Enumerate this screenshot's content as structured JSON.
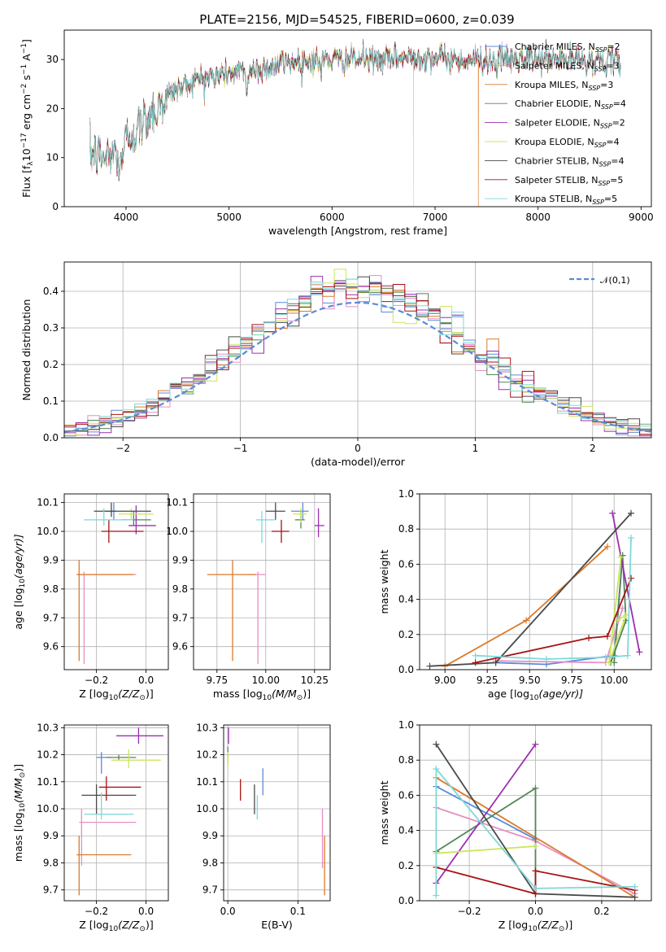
{
  "title": "PLATE=2156, MJD=54525, FIBERID=0600, z=0.039",
  "colors": [
    "#5b8bd9",
    "#e58fc4",
    "#db7a2a",
    "#55855a",
    "#9b2fb0",
    "#cbe65a",
    "#4a4a4a",
    "#a81212",
    "#7fd8d8"
  ],
  "legend_labels": [
    {
      "main": "Chabrier MILES, N",
      "sub": "SSP",
      "tail": "=2"
    },
    {
      "main": "Salpeter MILES, N",
      "sub": "SSP",
      "tail": "=3"
    },
    {
      "main": "Kroupa MILES, N",
      "sub": "SSP",
      "tail": "=3"
    },
    {
      "main": "Chabrier ELODIE, N",
      "sub": "SSP",
      "tail": "=4"
    },
    {
      "main": "Salpeter ELODIE, N",
      "sub": "SSP",
      "tail": "=2"
    },
    {
      "main": "Kroupa ELODIE, N",
      "sub": "SSP",
      "tail": "=4"
    },
    {
      "main": "Chabrier STELIB, N",
      "sub": "SSP",
      "tail": "=4"
    },
    {
      "main": "Salpeter STELIB, N",
      "sub": "SSP",
      "tail": "=5"
    },
    {
      "main": "Kroupa STELIB, N",
      "sub": "SSP",
      "tail": "=5"
    }
  ],
  "chart_data": [
    {
      "id": "spectrum",
      "type": "line",
      "xlabel": "wavelength [Angstrom, rest frame]",
      "ylabel_parts": [
        "Flux [f",
        "λ",
        "10",
        "−17",
        " erg cm",
        "−2",
        " s",
        "−1",
        " A",
        "−1",
        "]"
      ],
      "xlim": [
        3400,
        9100
      ],
      "ylim": [
        0,
        36
      ],
      "xticks": [
        4000,
        5000,
        6000,
        7000,
        8000,
        9000
      ],
      "yticks": [
        0,
        10,
        20,
        30
      ],
      "envelope": [
        [
          3650,
          11
        ],
        [
          3800,
          10
        ],
        [
          3900,
          11
        ],
        [
          4000,
          14
        ],
        [
          4100,
          16
        ],
        [
          4200,
          18
        ],
        [
          4300,
          21
        ],
        [
          4500,
          24
        ],
        [
          4700,
          26
        ],
        [
          4900,
          27
        ],
        [
          5100,
          27.5
        ],
        [
          5300,
          28
        ],
        [
          5600,
          29.5
        ],
        [
          5900,
          30
        ],
        [
          6200,
          30
        ],
        [
          6500,
          30
        ],
        [
          6800,
          30.5
        ],
        [
          7000,
          30.5
        ],
        [
          7200,
          30
        ],
        [
          7400,
          30
        ],
        [
          7600,
          30
        ],
        [
          8000,
          30
        ],
        [
          8400,
          30
        ],
        [
          8800,
          29.5
        ]
      ],
      "series_ranges": [
        [
          3650,
          8800
        ],
        [
          3650,
          8800
        ],
        [
          3650,
          7420
        ],
        [
          3650,
          8800
        ],
        [
          3650,
          8800
        ],
        [
          3650,
          8800
        ],
        [
          3650,
          8800
        ],
        [
          3650,
          8800
        ],
        [
          3650,
          8800
        ]
      ],
      "dips": [
        {
          "series": 5,
          "x": 6790
        },
        {
          "series": 2,
          "x": 7420
        }
      ],
      "legend_position": "upper right"
    },
    {
      "id": "residuals",
      "type": "histogram",
      "xlabel": "(data-model)/error",
      "ylabel": "Normed distribution",
      "xlim": [
        -2.5,
        2.5
      ],
      "ylim": [
        0,
        0.48
      ],
      "xticks": [
        -2,
        -1,
        0,
        1,
        2
      ],
      "yticks": [
        0.0,
        0.1,
        0.2,
        0.3,
        0.4
      ],
      "bin_width": 0.1,
      "legend": "𝒩(0,1)",
      "legend_position": "upper right"
    },
    {
      "id": "age_vs_Z",
      "type": "errorbar",
      "xlabel_parts": [
        "Z [log",
        "10",
        "(Z/Z",
        "⊙",
        ")]"
      ],
      "ylabel_parts": [
        "age  [log",
        "10",
        "(age/yr)]"
      ],
      "xlim": [
        -0.33,
        0.09
      ],
      "ylim": [
        9.52,
        10.13
      ],
      "xticks": [
        -0.2,
        0.0
      ],
      "yticks": [
        9.6,
        9.7,
        9.8,
        9.9,
        10.0,
        10.1
      ],
      "points": [
        {
          "c": 0,
          "x": -0.13,
          "xl": -0.17,
          "xh": -0.12,
          "y": 10.07,
          "yl": 10.04,
          "yh": 10.1
        },
        {
          "c": 1,
          "x": -0.25,
          "xl": -0.28,
          "xh": -0.04,
          "y": 9.85,
          "yl": 9.54,
          "yh": 9.86
        },
        {
          "c": 2,
          "x": -0.27,
          "xl": -0.28,
          "xh": -0.05,
          "y": 9.85,
          "yl": 9.55,
          "yh": 9.9
        },
        {
          "c": 3,
          "x": -0.05,
          "xl": -0.1,
          "xh": 0.02,
          "y": 10.04,
          "yl": 10.02,
          "yh": 10.07
        },
        {
          "c": 4,
          "x": -0.04,
          "xl": -0.07,
          "xh": 0.04,
          "y": 10.02,
          "yl": 9.99,
          "yh": 10.09
        },
        {
          "c": 5,
          "x": -0.06,
          "xl": -0.11,
          "xh": 0.03,
          "y": 10.06,
          "yl": 10.04,
          "yh": 10.08
        },
        {
          "c": 6,
          "x": -0.14,
          "xl": -0.21,
          "xh": 0.02,
          "y": 10.07,
          "yl": 10.05,
          "yh": 10.1
        },
        {
          "c": 7,
          "x": -0.15,
          "xl": -0.18,
          "xh": -0.01,
          "y": 10.0,
          "yl": 9.96,
          "yh": 10.04
        },
        {
          "c": 8,
          "x": -0.17,
          "xl": -0.25,
          "xh": -0.05,
          "y": 10.04,
          "yl": 10.02,
          "yh": 10.08
        }
      ]
    },
    {
      "id": "age_vs_mass",
      "type": "errorbar",
      "xlabel_parts": [
        "mass [log",
        "10",
        "(M/M",
        "⊙",
        ")]"
      ],
      "xlim": [
        9.63,
        10.33
      ],
      "ylim": [
        9.52,
        10.13
      ],
      "xticks": [
        9.75,
        10.0,
        10.25
      ],
      "yticks": [
        9.6,
        9.7,
        9.8,
        9.9,
        10.0,
        10.1
      ],
      "points": [
        {
          "c": 0,
          "x": 10.19,
          "xl": 10.13,
          "xh": 10.22,
          "y": 10.07,
          "yl": 10.04,
          "yh": 10.1
        },
        {
          "c": 1,
          "x": 9.96,
          "xl": 9.9,
          "xh": 10.0,
          "y": 9.85,
          "yl": 9.54,
          "yh": 9.86
        },
        {
          "c": 2,
          "x": 9.83,
          "xl": 9.7,
          "xh": 9.95,
          "y": 9.85,
          "yl": 9.55,
          "yh": 9.9
        },
        {
          "c": 3,
          "x": 10.18,
          "xl": 10.15,
          "xh": 10.2,
          "y": 10.04,
          "yl": 10.01,
          "yh": 10.07
        },
        {
          "c": 4,
          "x": 10.27,
          "xl": 10.25,
          "xh": 10.3,
          "y": 10.02,
          "yl": 9.98,
          "yh": 10.08
        },
        {
          "c": 5,
          "x": 10.18,
          "xl": 10.14,
          "xh": 10.21,
          "y": 10.06,
          "yl": 10.03,
          "yh": 10.08
        },
        {
          "c": 6,
          "x": 10.05,
          "xl": 10.0,
          "xh": 10.1,
          "y": 10.07,
          "yl": 10.04,
          "yh": 10.1
        },
        {
          "c": 7,
          "x": 10.08,
          "xl": 10.03,
          "xh": 10.12,
          "y": 10.0,
          "yl": 9.96,
          "yh": 10.04
        },
        {
          "c": 8,
          "x": 9.98,
          "xl": 9.95,
          "xh": 10.05,
          "y": 10.04,
          "yl": 9.96,
          "yh": 10.07
        }
      ]
    },
    {
      "id": "massweight_vs_age",
      "type": "line",
      "xlabel_parts": [
        "age  [log",
        "10",
        "(age/yr)]"
      ],
      "ylabel": "mass weight",
      "xlim": [
        8.85,
        10.22
      ],
      "ylim": [
        0,
        1.0
      ],
      "xticks": [
        9.0,
        9.25,
        9.5,
        9.75,
        10.0
      ],
      "yticks": [
        0.0,
        0.2,
        0.4,
        0.6,
        0.8,
        1.0
      ],
      "series": [
        {
          "c": 0,
          "points": [
            [
              9.3,
              0.04
            ],
            [
              9.6,
              0.03
            ],
            [
              10.0,
              0.08
            ],
            [
              10.05,
              0.65
            ]
          ]
        },
        {
          "c": 1,
          "points": [
            [
              9.3,
              0.05
            ],
            [
              9.95,
              0.04
            ],
            [
              10.05,
              0.35
            ]
          ]
        },
        {
          "c": 2,
          "points": [
            [
              9.0,
              0.02
            ],
            [
              9.48,
              0.28
            ],
            [
              9.96,
              0.7
            ]
          ]
        },
        {
          "c": 3,
          "points": [
            [
              10.0,
              0.04
            ],
            [
              10.05,
              0.65
            ],
            [
              10.07,
              0.28
            ],
            [
              9.98,
              0.04
            ]
          ]
        },
        {
          "c": 4,
          "points": [
            [
              9.99,
              0.89
            ],
            [
              10.15,
              0.1
            ]
          ]
        },
        {
          "c": 5,
          "points": [
            [
              10.02,
              0.28
            ],
            [
              10.07,
              0.31
            ],
            [
              9.97,
              0.04
            ],
            [
              10.04,
              0.64
            ]
          ]
        },
        {
          "c": 6,
          "points": [
            [
              8.91,
              0.02
            ],
            [
              9.3,
              0.04
            ],
            [
              10.1,
              0.89
            ]
          ]
        },
        {
          "c": 7,
          "points": [
            [
              9.18,
              0.04
            ],
            [
              9.85,
              0.18
            ],
            [
              9.96,
              0.19
            ],
            [
              10.1,
              0.52
            ]
          ]
        },
        {
          "c": 8,
          "points": [
            [
              9.18,
              0.08
            ],
            [
              9.6,
              0.06
            ],
            [
              9.95,
              0.07
            ],
            [
              10.08,
              0.08
            ],
            [
              10.1,
              0.75
            ]
          ]
        }
      ]
    },
    {
      "id": "mass_vs_Z",
      "type": "errorbar",
      "xlabel_parts": [
        "Z [log",
        "10",
        "(Z/Z",
        "⊙",
        ")]"
      ],
      "ylabel_parts": [
        "mass [log",
        "10",
        "(M/M",
        "⊙",
        ")]"
      ],
      "xlim": [
        -0.33,
        0.09
      ],
      "ylim": [
        9.66,
        10.31
      ],
      "xticks": [
        -0.2,
        0.0
      ],
      "yticks": [
        9.7,
        9.8,
        9.9,
        10.0,
        10.1,
        10.2,
        10.3
      ],
      "points": [
        {
          "c": 0,
          "x": -0.18,
          "xl": -0.2,
          "xh": -0.14,
          "y": 10.19,
          "yl": 10.13,
          "yh": 10.21
        },
        {
          "c": 1,
          "x": -0.26,
          "xl": -0.27,
          "xh": -0.04,
          "y": 9.95,
          "yl": 9.79,
          "yh": 10.0
        },
        {
          "c": 2,
          "x": -0.27,
          "xl": -0.28,
          "xh": -0.06,
          "y": 9.83,
          "yl": 9.68,
          "yh": 9.9
        },
        {
          "c": 3,
          "x": -0.11,
          "xl": -0.16,
          "xh": -0.04,
          "y": 10.19,
          "yl": 10.18,
          "yh": 10.2
        },
        {
          "c": 4,
          "x": -0.03,
          "xl": -0.12,
          "xh": 0.07,
          "y": 10.27,
          "yl": 10.24,
          "yh": 10.3
        },
        {
          "c": 5,
          "x": -0.07,
          "xl": -0.14,
          "xh": 0.06,
          "y": 10.18,
          "yl": 10.15,
          "yh": 10.22
        },
        {
          "c": 6,
          "x": -0.2,
          "xl": -0.26,
          "xh": -0.04,
          "y": 10.05,
          "yl": 9.98,
          "yh": 10.09
        },
        {
          "c": 7,
          "x": -0.16,
          "xl": -0.19,
          "xh": -0.02,
          "y": 10.08,
          "yl": 10.03,
          "yh": 10.12
        },
        {
          "c": 8,
          "x": -0.18,
          "xl": -0.25,
          "xh": -0.05,
          "y": 9.98,
          "yl": 9.96,
          "yh": 10.06
        }
      ]
    },
    {
      "id": "mass_vs_ebv",
      "type": "errorbar",
      "xlabel": "E(B-V)",
      "xlim": [
        -0.006,
        0.146
      ],
      "ylim": [
        9.66,
        10.31
      ],
      "xticks": [
        0.0,
        0.1
      ],
      "yticks": [
        9.7,
        9.8,
        9.9,
        10.0,
        10.1,
        10.2,
        10.3
      ],
      "points": [
        {
          "c": 0,
          "x": 0.05,
          "y": 10.1,
          "yl": 10.05,
          "yh": 10.15
        },
        {
          "c": 1,
          "x": 0.135,
          "y": 9.8,
          "yl": 9.78,
          "yh": 10.0
        },
        {
          "c": 2,
          "x": 0.138,
          "y": 9.75,
          "yl": 9.68,
          "yh": 9.9
        },
        {
          "c": 3,
          "x": 0.0,
          "y": 10.21,
          "yl": 10.17,
          "yh": 10.23
        },
        {
          "c": 4,
          "x": 0.001,
          "y": 10.27,
          "yl": 10.24,
          "yh": 10.3
        },
        {
          "c": 5,
          "x": 0.0,
          "y": 10.19,
          "yl": 10.16,
          "yh": 10.21
        },
        {
          "c": 6,
          "x": 0.038,
          "y": 10.04,
          "yl": 9.98,
          "yh": 10.09
        },
        {
          "c": 7,
          "x": 0.018,
          "y": 10.07,
          "yl": 10.03,
          "yh": 10.11
        },
        {
          "c": 8,
          "x": 0.042,
          "y": 9.99,
          "yl": 9.96,
          "yh": 10.05
        }
      ]
    },
    {
      "id": "massweight_vs_Z",
      "type": "line",
      "xlabel_parts": [
        "Z [log",
        "10",
        "(Z/Z",
        "⊙",
        ")]"
      ],
      "ylabel": "mass weight",
      "xlim": [
        -0.35,
        0.35
      ],
      "ylim": [
        0,
        1.0
      ],
      "xticks": [
        -0.2,
        0.0,
        0.2
      ],
      "yticks": [
        0.0,
        0.2,
        0.4,
        0.6,
        0.8,
        1.0
      ],
      "series": [
        {
          "c": 0,
          "points": [
            [
              -0.3,
              0.65
            ],
            [
              0.0,
              0.35
            ]
          ]
        },
        {
          "c": 1,
          "points": [
            [
              -0.3,
              0.53
            ],
            [
              0.0,
              0.34
            ],
            [
              0.3,
              0.04
            ]
          ]
        },
        {
          "c": 2,
          "points": [
            [
              -0.3,
              0.7
            ],
            [
              0.3,
              0.02
            ]
          ]
        },
        {
          "c": 3,
          "points": [
            [
              -0.3,
              0.28
            ],
            [
              0.0,
              0.64
            ],
            [
              0.0,
              0.04
            ]
          ]
        },
        {
          "c": 4,
          "points": [
            [
              -0.3,
              0.1
            ],
            [
              0.0,
              0.89
            ]
          ]
        },
        {
          "c": 5,
          "points": [
            [
              -0.3,
              0.27
            ],
            [
              0.0,
              0.31
            ]
          ]
        },
        {
          "c": 6,
          "points": [
            [
              -0.3,
              0.89
            ],
            [
              0.0,
              0.04
            ],
            [
              0.3,
              0.02
            ]
          ]
        },
        {
          "c": 7,
          "points": [
            [
              -0.3,
              0.19
            ],
            [
              0.0,
              0.04
            ],
            [
              0.0,
              0.17
            ],
            [
              0.3,
              0.06
            ]
          ]
        },
        {
          "c": 8,
          "points": [
            [
              -0.3,
              0.03
            ],
            [
              -0.3,
              0.75
            ],
            [
              0.0,
              0.07
            ],
            [
              0.3,
              0.08
            ]
          ]
        }
      ]
    }
  ]
}
